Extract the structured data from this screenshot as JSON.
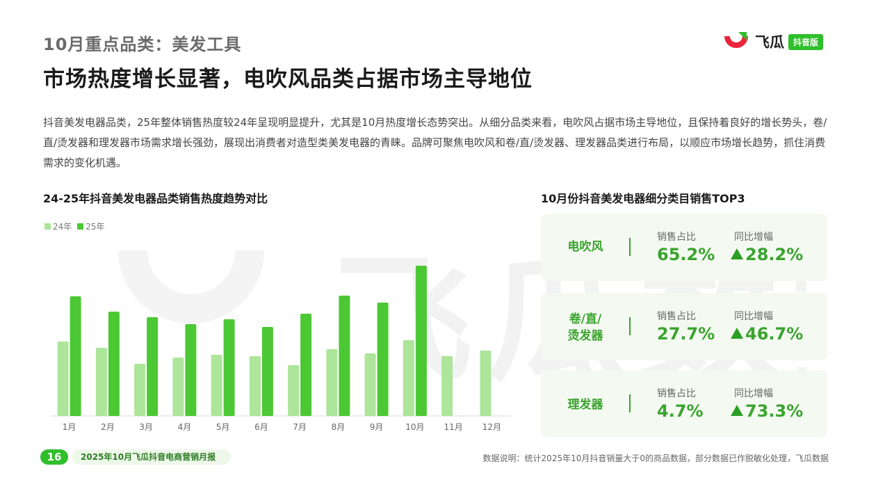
{
  "header": {
    "category_title": "10月重点品类：美发工具",
    "headline": "市场热度增长显著，电吹风品类占据市场主导地位"
  },
  "logo": {
    "text": "飞瓜",
    "badge": "抖音版"
  },
  "description": "抖音美发电器品类，25年整体销售热度较24年呈现明显提升，尤其是10月热度增长态势突出。从细分品类来看，电吹风占据市场主导地位，且保持着良好的增长势头，卷/直/烫发器和理发器市场需求增长强劲，展现出消费者对造型类美发电器的青睐。品牌可聚焦电吹风和卷/直/烫发器、理发器品类进行布局，以顺应市场增长趋势，抓住消费需求的变化机遇。",
  "chart_data": {
    "type": "bar",
    "title": "24-25年抖音美发电器品类销售热度趋势对比",
    "categories": [
      "1月",
      "2月",
      "3月",
      "4月",
      "5月",
      "6月",
      "7月",
      "8月",
      "9月",
      "10月",
      "11月",
      "12月"
    ],
    "series": [
      {
        "name": "24年",
        "color": "#ade59a",
        "values": [
          107,
          98,
          75,
          84,
          88,
          86,
          73,
          96,
          90,
          109,
          86,
          94
        ]
      },
      {
        "name": "25年",
        "color": "#4cc834",
        "values": [
          172,
          150,
          142,
          132,
          139,
          128,
          147,
          173,
          163,
          216,
          null,
          null
        ]
      }
    ],
    "ylim": [
      0,
      240
    ],
    "xlabel": "",
    "ylabel": "",
    "grid": false,
    "legend": "top-left"
  },
  "top3": {
    "title": "10月份抖音美发电器细分类目销售TOP3",
    "share_label": "销售占比",
    "growth_label": "同比增幅",
    "items": [
      {
        "name_lines": [
          "电吹风"
        ],
        "share": "65.2%",
        "growth": "28.2%"
      },
      {
        "name_lines": [
          "卷/直/",
          "烫发器"
        ],
        "share": "27.7%",
        "growth": "46.7%"
      },
      {
        "name_lines": [
          "理发器"
        ],
        "share": "4.7%",
        "growth": "73.3%"
      }
    ]
  },
  "footer": {
    "page_number": "16",
    "report_name": "2025年10月飞瓜抖音电商营销月报",
    "note": "数据说明：统计2025年10月抖音销量大于0的商品数据，部分数据已作脱敏化处理，飞瓜数据"
  },
  "watermark": {
    "text": "飞瓜数据"
  },
  "colors": {
    "brand_green": "#2fbf2b",
    "accent_green": "#3aa32f",
    "logo_red": "#e8253a"
  }
}
